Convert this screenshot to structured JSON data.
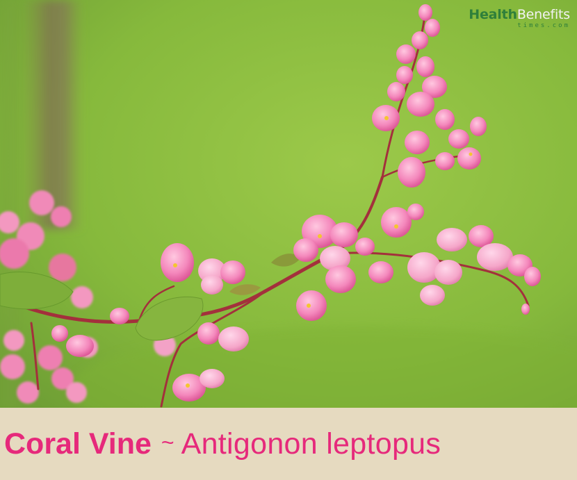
{
  "logo": {
    "part1": "Health",
    "part2": "Benefits",
    "sub": "times.com"
  },
  "caption": {
    "common_name": "Coral Vine",
    "separator": "~",
    "scientific_name": "Antigonon leptopus"
  },
  "colors": {
    "background_green": "#86b93c",
    "caption_band": "#e6dac0",
    "title_pink": "#e6297b",
    "flower_pink": "#f27db3",
    "stem_red": "#a3303c",
    "logo_green": "#2f7f3a"
  }
}
